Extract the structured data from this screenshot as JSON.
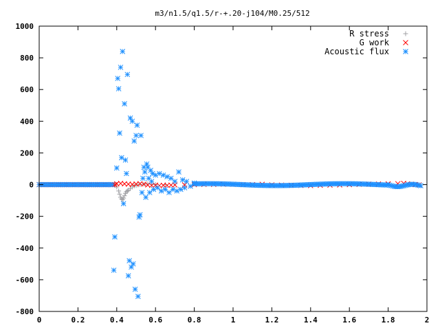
{
  "chart_data": {
    "type": "scatter",
    "title": "m3/n1.5/q1.5/r-+.20-j104/M0.25/512",
    "xlabel": "",
    "ylabel": "",
    "xlim": [
      0,
      2
    ],
    "ylim": [
      -800,
      1000
    ],
    "xticks": [
      0,
      0.2,
      0.4,
      0.6,
      0.8,
      1,
      1.2,
      1.4,
      1.6,
      1.8,
      2
    ],
    "xtick_labels": [
      "0",
      "0.2",
      "0.4",
      "0.6",
      "0.8",
      "1",
      "1.2",
      "1.4",
      "1.6",
      "1.8",
      "2"
    ],
    "yticks": [
      -800,
      -600,
      -400,
      -200,
      0,
      200,
      400,
      600,
      800,
      1000
    ],
    "ytick_labels": [
      "-800",
      "-600",
      "-400",
      "-200",
      "0",
      "200",
      "400",
      "600",
      "800",
      "1000"
    ],
    "grid": false,
    "legend_position": "top-right",
    "series": [
      {
        "name": "R stress",
        "marker": "plus",
        "color": "#a0a0a4",
        "points": [
          [
            0.38,
            0
          ],
          [
            0.39,
            -5
          ],
          [
            0.4,
            -15
          ],
          [
            0.41,
            -40
          ],
          [
            0.415,
            -60
          ],
          [
            0.42,
            -80
          ],
          [
            0.425,
            -90
          ],
          [
            0.43,
            -95
          ],
          [
            0.435,
            -85
          ],
          [
            0.44,
            -70
          ],
          [
            0.445,
            -55
          ],
          [
            0.45,
            -45
          ],
          [
            0.455,
            -40
          ],
          [
            0.46,
            -35
          ],
          [
            0.47,
            -25
          ],
          [
            0.48,
            -15
          ],
          [
            0.49,
            -8
          ],
          [
            0.5,
            -5
          ],
          [
            0.51,
            -2
          ],
          [
            0.52,
            0
          ],
          [
            0.54,
            3
          ],
          [
            0.56,
            5
          ],
          [
            0.58,
            3
          ],
          [
            0.6,
            0
          ],
          [
            0.65,
            0
          ]
        ]
      },
      {
        "name": "G work",
        "marker": "cross",
        "color": "#ff0000",
        "points": [
          [
            0.4,
            5
          ],
          [
            0.42,
            8
          ],
          [
            0.44,
            5
          ],
          [
            0.46,
            3
          ],
          [
            0.48,
            2
          ],
          [
            0.5,
            4
          ],
          [
            0.52,
            6
          ],
          [
            0.54,
            3
          ],
          [
            0.56,
            -2
          ],
          [
            0.58,
            -5
          ],
          [
            0.6,
            -3
          ],
          [
            0.62,
            -6
          ],
          [
            0.64,
            -4
          ],
          [
            0.66,
            -5
          ],
          [
            0.68,
            -3
          ],
          [
            0.7,
            -2
          ],
          [
            0.75,
            -2
          ],
          [
            0.8,
            0
          ],
          [
            0.85,
            2
          ],
          [
            0.9,
            2
          ],
          [
            0.95,
            3
          ],
          [
            1.0,
            2
          ],
          [
            1.05,
            0
          ],
          [
            1.1,
            0
          ],
          [
            1.15,
            2
          ],
          [
            1.2,
            -2
          ],
          [
            1.25,
            -3
          ],
          [
            1.3,
            -4
          ],
          [
            1.35,
            -5
          ],
          [
            1.4,
            -6
          ],
          [
            1.45,
            -4
          ],
          [
            1.5,
            -3
          ],
          [
            1.55,
            -2
          ],
          [
            1.6,
            0
          ],
          [
            1.65,
            2
          ],
          [
            1.7,
            3
          ],
          [
            1.75,
            4
          ],
          [
            1.8,
            5
          ],
          [
            1.85,
            6
          ],
          [
            1.88,
            8
          ],
          [
            1.9,
            5
          ],
          [
            1.92,
            3
          ],
          [
            1.94,
            0
          ],
          [
            1.96,
            -2
          ]
        ]
      },
      {
        "name": "Acoustic flux",
        "marker": "star",
        "color": "#1e90ff",
        "points": [
          [
            0.385,
            -540
          ],
          [
            0.39,
            -330
          ],
          [
            0.4,
            105
          ],
          [
            0.405,
            670
          ],
          [
            0.41,
            605
          ],
          [
            0.415,
            325
          ],
          [
            0.42,
            740
          ],
          [
            0.425,
            170
          ],
          [
            0.43,
            840
          ],
          [
            0.435,
            -120
          ],
          [
            0.44,
            510
          ],
          [
            0.445,
            155
          ],
          [
            0.45,
            70
          ],
          [
            0.455,
            695
          ],
          [
            0.46,
            -575
          ],
          [
            0.465,
            -480
          ],
          [
            0.47,
            420
          ],
          [
            0.475,
            -520
          ],
          [
            0.48,
            400
          ],
          [
            0.485,
            -500
          ],
          [
            0.49,
            275
          ],
          [
            0.495,
            -660
          ],
          [
            0.5,
            310
          ],
          [
            0.505,
            375
          ],
          [
            0.51,
            -705
          ],
          [
            0.515,
            -205
          ],
          [
            0.52,
            -190
          ],
          [
            0.525,
            310
          ],
          [
            0.53,
            -50
          ],
          [
            0.535,
            40
          ],
          [
            0.54,
            110
          ],
          [
            0.545,
            80
          ],
          [
            0.55,
            -80
          ],
          [
            0.555,
            130
          ],
          [
            0.56,
            110
          ],
          [
            0.565,
            40
          ],
          [
            0.57,
            -50
          ],
          [
            0.575,
            90
          ],
          [
            0.58,
            20
          ],
          [
            0.585,
            70
          ],
          [
            0.59,
            -30
          ],
          [
            0.6,
            60
          ],
          [
            0.61,
            -20
          ],
          [
            0.62,
            70
          ],
          [
            0.63,
            -40
          ],
          [
            0.64,
            60
          ],
          [
            0.65,
            -30
          ],
          [
            0.66,
            50
          ],
          [
            0.67,
            -50
          ],
          [
            0.68,
            40
          ],
          [
            0.69,
            -30
          ],
          [
            0.7,
            20
          ],
          [
            0.71,
            -40
          ],
          [
            0.72,
            80
          ],
          [
            0.73,
            -30
          ],
          [
            0.74,
            30
          ],
          [
            0.75,
            -20
          ],
          [
            0.76,
            20
          ],
          [
            0.78,
            -10
          ],
          [
            0.8,
            10
          ]
        ]
      }
    ]
  }
}
